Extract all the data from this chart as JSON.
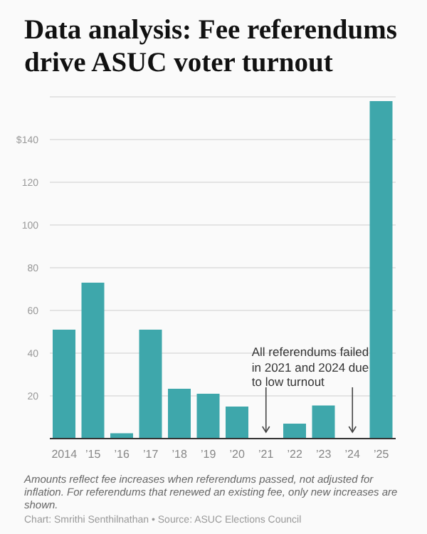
{
  "chart_data": {
    "type": "bar",
    "title": "Data analysis: Fee referendums drive ASUC voter turnout",
    "categories": [
      "2014",
      "’15",
      "’16",
      "’17",
      "’18",
      "’19",
      "’20",
      "’21",
      "’22",
      "’23",
      "’24",
      "’25"
    ],
    "values": [
      51,
      73,
      2.5,
      51,
      23.3,
      21,
      15,
      0,
      7,
      15.5,
      0,
      158
    ],
    "color": "#3ea7ab",
    "ylim": [
      0,
      160
    ],
    "yticks": [
      20,
      40,
      60,
      80,
      100,
      120,
      {
        "value": 140,
        "label": "$140"
      }
    ],
    "grid": "y",
    "legend": false,
    "annotations": [
      {
        "text": "All referendums failed in 2021 and 2024 due to low turnout",
        "x": "’21",
        "y": 0
      },
      "Amounts reflect fee increases when referendums passed, not adjusted for inflation. For referendums that renewed an existing fee, only new increases are shown.",
      "Chart: Smrithi Senthilnathan • Source: ASUC Elections Council"
    ]
  }
}
